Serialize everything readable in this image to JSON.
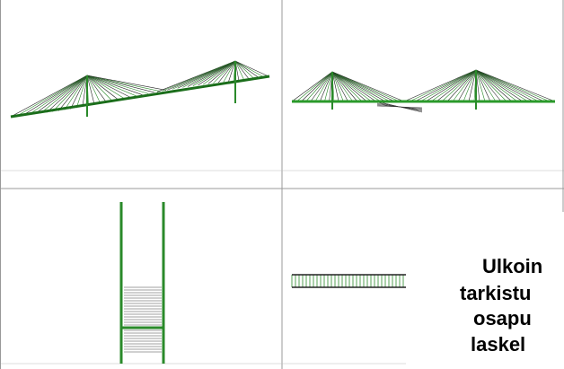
{
  "overlay": {
    "lines": [
      "Ulkoin",
      "tarkistu",
      "osapu",
      "laskel"
    ]
  }
}
